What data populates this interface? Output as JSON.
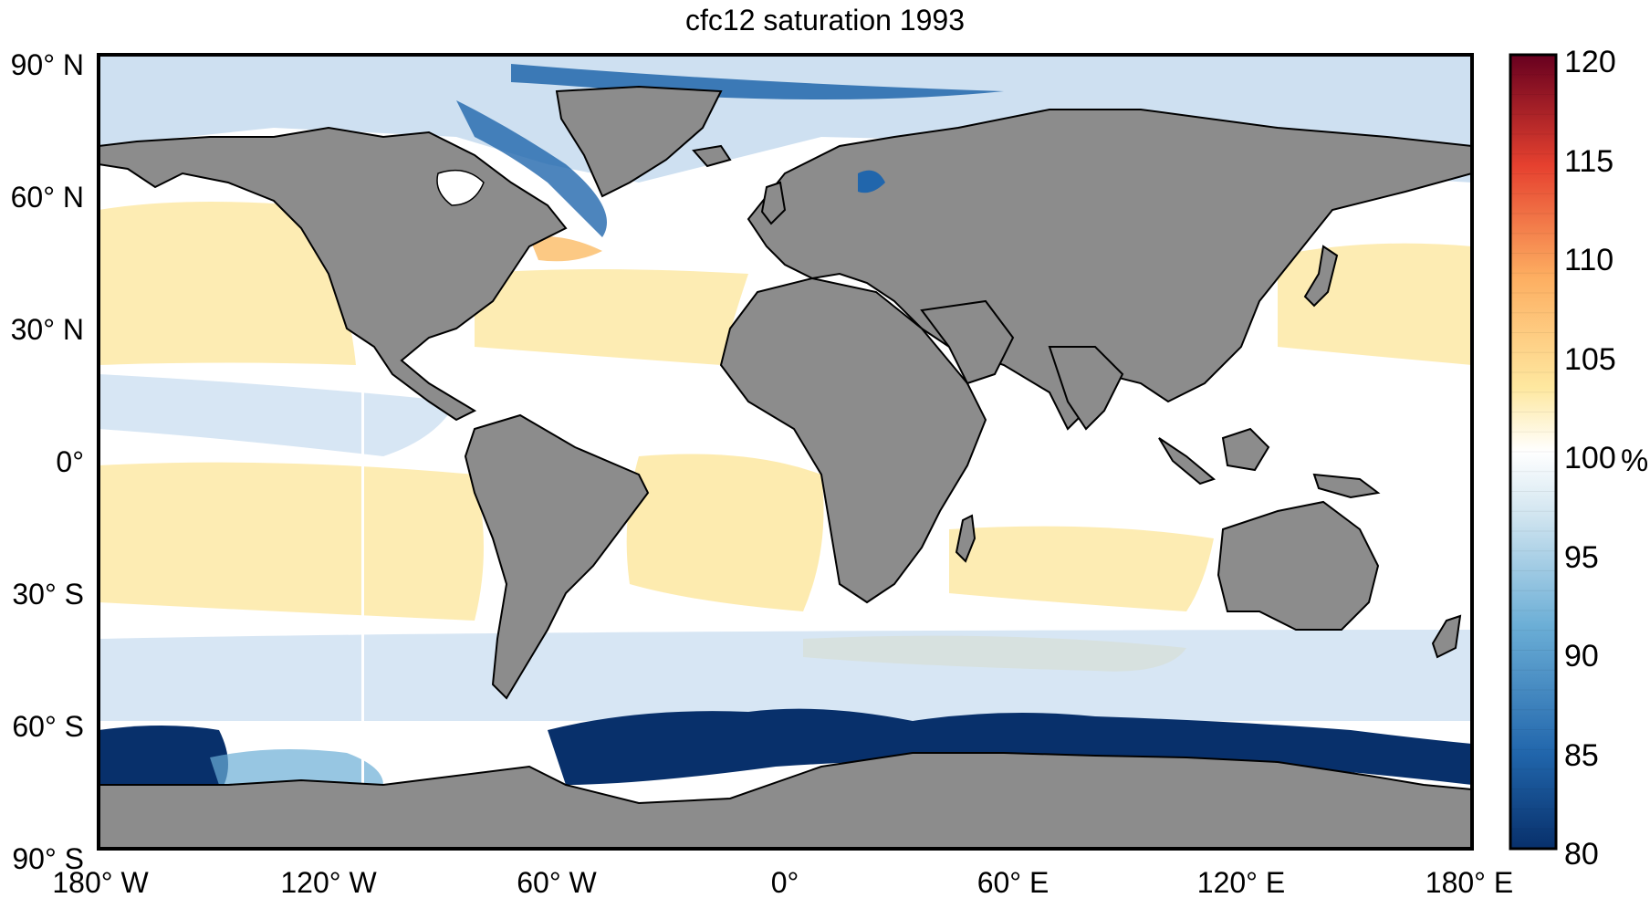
{
  "title": "cfc12 saturation 1993",
  "lat_labels": [
    "90° N",
    "60° N",
    "30° N",
    "0°",
    "30° S",
    "60° S",
    "90° S"
  ],
  "lon_labels": [
    "180° W",
    "120° W",
    "60° W",
    "0°",
    "60° E",
    "120° E",
    "180° E"
  ],
  "colorbar": {
    "ticks": [
      "120",
      "115",
      "110",
      "105",
      "100",
      "95",
      "90",
      "85",
      "80"
    ],
    "unit": "%",
    "range": [
      80,
      120
    ],
    "colors": {
      "low": "#08306b",
      "mid": "#ffffff",
      "high": "#67001f"
    }
  },
  "colors": {
    "land": "#8c8c8c",
    "ocean_neutral": "#ffffff",
    "warm": "#fde9a6",
    "cool": "#c6dbef",
    "deep_blue": "#08306b"
  }
}
